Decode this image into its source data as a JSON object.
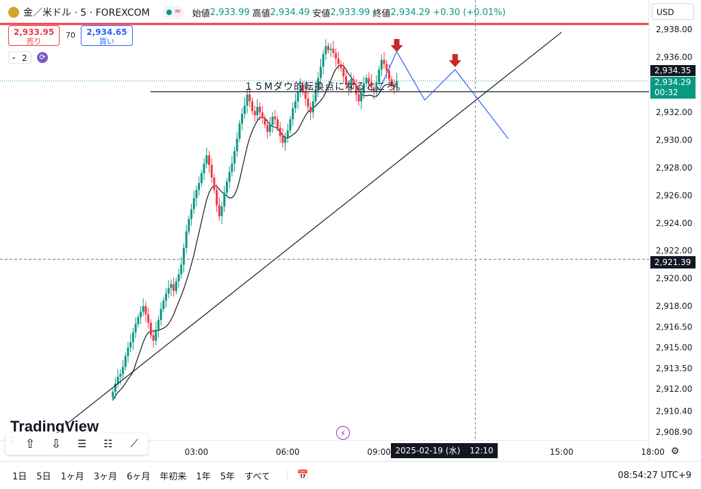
{
  "header": {
    "symbol": "金／米ドル · 5 · FOREXCOM",
    "open_label": "始値",
    "open": "2,933.99",
    "high_label": "高値",
    "high": "2,934.49",
    "low_label": "安値",
    "low": "2,933.99",
    "close_label": "終値",
    "close": "2,934.29",
    "change": "+0.30 (+0.01%)"
  },
  "currency": "USD",
  "sell": {
    "price": "2,933.95",
    "label": "売り"
  },
  "buy": {
    "price": "2,934.65",
    "label": "買い"
  },
  "spread": "70",
  "indicator_count": "2",
  "annotation": "１５Mダウ的転換点になるところ。",
  "watermark": "TradingView",
  "crosshair_date": "2025-02-19 (水)",
  "crosshair_time": "12:10",
  "price_labels": {
    "level": "2,934.35",
    "last": "2,934.29",
    "countdown": "00:32",
    "crosshair": "2,921.39"
  },
  "bottom": {
    "ranges": [
      "1日",
      "5日",
      "1ヶ月",
      "3ヶ月",
      "6ヶ月",
      "年初来",
      "1年",
      "5年",
      "すべて"
    ],
    "clock": "08:54:27 UTC+9"
  },
  "colors": {
    "up": "#089981",
    "down": "#f23645",
    "ma": "#131722",
    "projection": "#2962ff",
    "arrow": "#c62828"
  },
  "chart_data": {
    "type": "candlestick",
    "title": "金／米ドル · 5 · FOREXCOM",
    "xlabel": "",
    "ylabel": "",
    "ylim": [
      2908.2,
      2939.5
    ],
    "y_ticks": [
      "2,938.00",
      "2,936.00",
      "2,934.00",
      "2,932.00",
      "2,930.00",
      "2,928.00",
      "2,926.00",
      "2,924.00",
      "2,922.00",
      "2,920.00",
      "2,918.00",
      "2,916.50",
      "2,915.00",
      "2,913.50",
      "2,912.00",
      "2,910.40",
      "2,908.90"
    ],
    "y_tick_values": [
      2938.0,
      2936.0,
      2934.0,
      2932.0,
      2930.0,
      2928.0,
      2926.0,
      2924.0,
      2922.0,
      2920.0,
      2918.0,
      2916.5,
      2915.0,
      2913.5,
      2912.0,
      2910.4,
      2908.9
    ],
    "x_ticks": [
      "03:00",
      "06:00",
      "09:00",
      "15:00",
      "18:00"
    ],
    "x_tick_values": [
      "03:00",
      "06:00",
      "09:00",
      "15:00",
      "18:00"
    ],
    "bars_start": "00:15",
    "bar_minutes": 5,
    "closes": [
      2911.8,
      2912.4,
      2912.9,
      2913.1,
      2913.6,
      2914.4,
      2915.0,
      2915.4,
      2916.1,
      2916.7,
      2917.2,
      2917.6,
      2918.0,
      2917.4,
      2916.8,
      2915.9,
      2915.5,
      2916.3,
      2917.0,
      2917.8,
      2918.4,
      2918.9,
      2919.3,
      2919.6,
      2919.1,
      2919.8,
      2920.3,
      2921.0,
      2922.2,
      2923.4,
      2924.3,
      2925.0,
      2925.8,
      2926.4,
      2926.9,
      2927.6,
      2928.3,
      2928.9,
      2928.2,
      2927.3,
      2926.4,
      2925.3,
      2924.5,
      2925.2,
      2926.2,
      2927.0,
      2927.7,
      2928.3,
      2929.2,
      2930.1,
      2931.2,
      2931.9,
      2932.5,
      2933.3,
      2932.8,
      2932.1,
      2931.8,
      2932.4,
      2932.0,
      2931.6,
      2931.1,
      2930.6,
      2931.1,
      2931.7,
      2931.5,
      2930.9,
      2930.3,
      2929.8,
      2930.2,
      2930.7,
      2931.5,
      2932.3,
      2932.8,
      2933.5,
      2934.0,
      2933.5,
      2933.0,
      2932.4,
      2932.0,
      2932.8,
      2933.6,
      2934.5,
      2935.3,
      2936.2,
      2936.8,
      2936.5,
      2936.6,
      2936.3,
      2935.9,
      2935.5,
      2935.2,
      2934.6,
      2934.0,
      2933.8,
      2934.4,
      2934.0,
      2933.3,
      2932.8,
      2933.4,
      2934.1,
      2934.5,
      2934.2,
      2933.8,
      2933.5,
      2934.2,
      2935.1,
      2935.8,
      2935.5,
      2935.0,
      2934.4,
      2934.0,
      2933.8,
      2934.29
    ],
    "projection": [
      {
        "time": "09:00",
        "price": 2933.6
      },
      {
        "time": "09:35",
        "price": 2936.4
      },
      {
        "time": "10:30",
        "price": 2932.9
      },
      {
        "time": "11:30",
        "price": 2935.1
      },
      {
        "time": "13:15",
        "price": 2930.1
      }
    ],
    "horizontal_line": 2933.5,
    "trendline": [
      {
        "time": "-01:15",
        "price": 2909.5
      },
      {
        "time": "15:00",
        "price": 2937.8
      }
    ]
  }
}
